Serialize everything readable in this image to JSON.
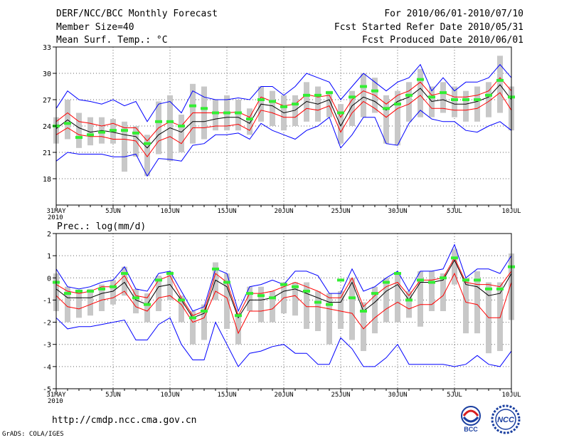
{
  "header": {
    "title": "DERF/NCC/BCC Monthly Forecast",
    "member_size": "Member Size=40",
    "variable": "Mean Surf. Temp.: °C",
    "forecast_for": "For 2010/06/01-2010/07/10",
    "started_refer": "Fcst Started Refer Date 2010/05/31",
    "produced": "Fcst Produced Date 2010/06/01"
  },
  "footer": {
    "url": "http://cmdp.ncc.cma.gov.cn",
    "grads": "GrADS: COLA/IGES",
    "logo_left": "BCC",
    "logo_right": "NCC"
  },
  "colors": {
    "mean": "#000000",
    "spread": "#ff0000",
    "range": "#0000ff",
    "member_bar": "#c8c8c8",
    "marker": "#33ee33"
  },
  "chart_data": [
    {
      "type": "line",
      "title": "Mean Surf. Temp.: °C",
      "x_ticks": [
        "31MAY",
        "5JUN",
        "10JUN",
        "15JUN",
        "20JUN",
        "25JUN",
        "30JUN",
        "5JUL",
        "10JUL"
      ],
      "x_year": "2010",
      "y_ticks": [
        18,
        21,
        24,
        27,
        30,
        33
      ],
      "ylim": [
        15,
        33
      ],
      "x_count": 41,
      "series": [
        {
          "name": "max",
          "values": [
            26.0,
            28.0,
            27.0,
            26.8,
            26.5,
            27.0,
            26.3,
            26.8,
            24.5,
            26.5,
            26.8,
            25.5,
            28.0,
            27.3,
            27.0,
            27.0,
            27.2,
            27.0,
            28.5,
            28.5,
            27.5,
            28.5,
            30.0,
            29.5,
            29.0,
            27.0,
            28.5,
            30.0,
            29.0,
            28.0,
            29.0,
            29.5,
            31.0,
            28.0,
            29.5,
            28.0,
            29.0,
            29.0,
            29.5,
            31.0,
            29.5
          ]
        },
        {
          "name": "upper",
          "values": [
            24.5,
            25.5,
            24.5,
            24.3,
            24.0,
            24.3,
            23.8,
            23.8,
            22.3,
            23.8,
            24.5,
            24.0,
            25.5,
            25.5,
            25.5,
            25.5,
            25.6,
            25.0,
            27.3,
            26.8,
            26.3,
            26.5,
            27.6,
            27.3,
            27.5,
            25.0,
            27.0,
            28.0,
            27.5,
            26.5,
            27.5,
            28.0,
            29.0,
            27.5,
            27.8,
            27.3,
            27.3,
            27.5,
            28.0,
            29.5,
            28.0
          ]
        },
        {
          "name": "mean",
          "values": [
            23.7,
            24.7,
            23.8,
            23.3,
            23.5,
            23.3,
            23.0,
            22.8,
            21.5,
            23.0,
            23.8,
            23.3,
            24.5,
            24.5,
            24.8,
            25.0,
            25.0,
            24.3,
            26.5,
            26.3,
            25.5,
            25.8,
            26.8,
            26.5,
            27.0,
            24.0,
            26.3,
            27.3,
            26.8,
            25.8,
            26.8,
            27.3,
            28.3,
            26.8,
            27.0,
            26.5,
            26.5,
            26.8,
            27.3,
            28.7,
            27.0
          ]
        },
        {
          "name": "lower",
          "values": [
            23.0,
            23.8,
            23.0,
            22.8,
            22.8,
            22.5,
            22.5,
            22.3,
            20.5,
            22.3,
            22.8,
            22.0,
            23.8,
            23.8,
            24.0,
            24.0,
            24.2,
            23.5,
            25.8,
            25.5,
            25.0,
            25.0,
            26.0,
            25.8,
            26.3,
            23.3,
            25.5,
            26.8,
            26.0,
            25.0,
            26.0,
            26.5,
            27.5,
            26.0,
            26.0,
            25.8,
            25.8,
            26.0,
            26.8,
            27.8,
            25.8
          ]
        },
        {
          "name": "min",
          "values": [
            20.0,
            21.0,
            20.8,
            20.8,
            20.8,
            20.5,
            20.5,
            20.8,
            18.3,
            20.3,
            20.2,
            20.0,
            21.8,
            22.0,
            23.0,
            23.0,
            23.2,
            22.5,
            24.3,
            23.5,
            23.0,
            22.5,
            23.5,
            24.0,
            25.0,
            21.5,
            23.0,
            25.0,
            25.0,
            22.0,
            21.8,
            24.3,
            25.8,
            24.8,
            24.5,
            24.5,
            23.5,
            23.3,
            24.0,
            24.5,
            23.5
          ]
        }
      ],
      "member_bars": [
        [
          22.0,
          25.0
        ],
        [
          22.5,
          27.0
        ],
        [
          21.5,
          25.5
        ],
        [
          21.8,
          25.0
        ],
        [
          22.0,
          25.0
        ],
        [
          22.0,
          24.8
        ],
        [
          18.8,
          24.5
        ],
        [
          20.5,
          24.0
        ],
        [
          18.3,
          23.0
        ],
        [
          20.8,
          26.8
        ],
        [
          20.0,
          27.5
        ],
        [
          21.0,
          25.3
        ],
        [
          22.0,
          28.8
        ],
        [
          22.5,
          28.5
        ],
        [
          23.5,
          27.0
        ],
        [
          23.5,
          27.5
        ],
        [
          23.5,
          27.0
        ],
        [
          23.0,
          26.0
        ],
        [
          24.5,
          28.5
        ],
        [
          24.0,
          28.0
        ],
        [
          23.5,
          27.5
        ],
        [
          24.0,
          27.5
        ],
        [
          24.5,
          29.0
        ],
        [
          24.5,
          28.5
        ],
        [
          25.0,
          28.0
        ],
        [
          22.0,
          26.5
        ],
        [
          24.0,
          28.0
        ],
        [
          25.0,
          30.0
        ],
        [
          25.5,
          29.5
        ],
        [
          22.0,
          27.5
        ],
        [
          21.8,
          28.0
        ],
        [
          24.5,
          29.0
        ],
        [
          25.0,
          30.5
        ],
        [
          25.0,
          28.5
        ],
        [
          25.5,
          29.0
        ],
        [
          25.0,
          28.5
        ],
        [
          24.5,
          28.0
        ],
        [
          24.5,
          28.5
        ],
        [
          25.0,
          29.0
        ],
        [
          25.5,
          32.0
        ],
        [
          23.5,
          28.5
        ]
      ],
      "markers": [
        24.0,
        24.3,
        22.7,
        23.0,
        23.3,
        23.5,
        23.5,
        23.2,
        22.0,
        24.5,
        24.5,
        24.0,
        26.3,
        26.0,
        25.5,
        25.5,
        25.5,
        24.8,
        27.0,
        26.8,
        26.2,
        26.5,
        27.5,
        27.5,
        27.8,
        25.5,
        27.3,
        28.5,
        28.0,
        26.0,
        26.5,
        27.5,
        29.3,
        27.3,
        27.8,
        27.0,
        27.0,
        27.0,
        27.5,
        29.2,
        27.3
      ]
    },
    {
      "type": "line",
      "title": "Prec.: log(mm/d)",
      "x_ticks": [
        "31MAY",
        "5JUN",
        "10JUN",
        "15JUN",
        "20JUN",
        "25JUN",
        "30JUN",
        "5JUL",
        "10JUL"
      ],
      "x_year": "2010",
      "y_ticks": [
        -5,
        -4,
        -3,
        -2,
        -1,
        0,
        1,
        2
      ],
      "ylim": [
        -5,
        2
      ],
      "x_count": 41,
      "series": [
        {
          "name": "max",
          "values": [
            0.4,
            -0.4,
            -0.5,
            -0.4,
            -0.2,
            -0.1,
            0.5,
            -0.5,
            -0.6,
            0.2,
            0.3,
            -0.6,
            -1.5,
            -1.3,
            0.4,
            0.2,
            -1.5,
            -0.4,
            -0.3,
            -0.1,
            -0.3,
            0.3,
            0.3,
            0.1,
            -0.7,
            -0.7,
            0.4,
            -0.6,
            -0.4,
            0.0,
            0.3,
            -0.6,
            0.3,
            0.3,
            0.4,
            1.5,
            0.0,
            0.4,
            0.4,
            0.2,
            1.0
          ]
        },
        {
          "name": "upper",
          "values": [
            -0.3,
            -0.6,
            -0.7,
            -0.6,
            -0.4,
            -0.4,
            0.1,
            -0.8,
            -0.9,
            -0.1,
            0.1,
            -0.9,
            -1.7,
            -1.5,
            0.2,
            -0.2,
            -1.7,
            -0.7,
            -0.7,
            -0.6,
            -0.4,
            -0.2,
            -0.4,
            -0.6,
            -0.9,
            -0.9,
            0.0,
            -1.3,
            -0.8,
            -0.4,
            -0.2,
            -0.8,
            -0.1,
            -0.1,
            0.0,
            0.9,
            -0.2,
            -0.3,
            -0.3,
            -0.4,
            0.3
          ]
        },
        {
          "name": "mean",
          "values": [
            -0.5,
            -0.9,
            -0.9,
            -0.9,
            -0.7,
            -0.6,
            -0.2,
            -1.0,
            -1.2,
            -0.4,
            -0.3,
            -1.0,
            -1.8,
            -1.6,
            -0.1,
            -0.4,
            -1.8,
            -1.0,
            -1.0,
            -0.9,
            -0.6,
            -0.5,
            -0.7,
            -0.9,
            -1.1,
            -1.1,
            -0.2,
            -1.5,
            -1.1,
            -0.6,
            -0.3,
            -1.0,
            -0.2,
            -0.2,
            -0.1,
            0.8,
            -0.3,
            -0.4,
            -0.8,
            -0.7,
            0.2
          ]
        },
        {
          "name": "lower",
          "values": [
            -0.8,
            -1.3,
            -1.4,
            -1.2,
            -1.0,
            -0.9,
            -0.6,
            -1.3,
            -1.5,
            -0.9,
            -0.8,
            -1.2,
            -2.0,
            -1.8,
            -0.6,
            -0.9,
            -2.5,
            -1.5,
            -1.5,
            -1.4,
            -0.9,
            -0.8,
            -1.3,
            -1.3,
            -1.4,
            -1.5,
            -1.6,
            -2.3,
            -1.8,
            -1.4,
            -1.1,
            -1.4,
            -1.2,
            -1.2,
            -0.8,
            0.2,
            -1.1,
            -1.2,
            -1.8,
            -1.8,
            -0.2
          ]
        },
        {
          "name": "min",
          "values": [
            -1.8,
            -2.3,
            -2.2,
            -2.2,
            -2.1,
            -2.0,
            -1.9,
            -2.8,
            -2.8,
            -2.1,
            -1.8,
            -3.0,
            -3.7,
            -3.7,
            -2.0,
            -3.0,
            -4.0,
            -3.4,
            -3.3,
            -3.1,
            -3.0,
            -3.4,
            -3.4,
            -3.9,
            -3.9,
            -2.7,
            -3.2,
            -4.0,
            -4.0,
            -3.6,
            -3.0,
            -3.9,
            -3.9,
            -3.9,
            -3.9,
            -4.0,
            -3.9,
            -3.5,
            -3.9,
            -4.0,
            -3.3
          ]
        },
        {
          "name": "markers",
          "values": [
            -0.2,
            -0.7,
            -0.6,
            -0.6,
            -0.5,
            -0.4,
            0.2,
            -0.9,
            -1.2,
            -0.1,
            0.2,
            -1.0,
            -1.8,
            -1.5,
            0.4,
            -0.2,
            -1.7,
            -0.7,
            -0.8,
            -0.9,
            -0.3,
            -0.4,
            -0.6,
            -1.1,
            -1.2,
            -0.1,
            -0.9,
            -1.5,
            -0.7,
            -0.2,
            0.2,
            -1.0,
            -0.1,
            -0.2,
            0.0,
            0.9,
            -0.1,
            -0.1,
            -0.5,
            -0.5,
            0.5
          ]
        }
      ],
      "member_bars": [
        [
          -1.5,
          0.2
        ],
        [
          -2.0,
          -0.4
        ],
        [
          -1.8,
          -0.6
        ],
        [
          -1.7,
          -0.5
        ],
        [
          -1.5,
          -0.3
        ],
        [
          -1.2,
          -0.1
        ],
        [
          -0.8,
          0.5
        ],
        [
          -1.6,
          -0.5
        ],
        [
          -2.0,
          -0.7
        ],
        [
          -1.5,
          0.1
        ],
        [
          -1.0,
          0.3
        ],
        [
          -2.0,
          -0.8
        ],
        [
          -3.0,
          -1.5
        ],
        [
          -2.8,
          -1.2
        ],
        [
          -1.0,
          0.7
        ],
        [
          -2.3,
          0.2
        ],
        [
          -3.0,
          -1.6
        ],
        [
          -1.5,
          -0.4
        ],
        [
          -2.0,
          -0.4
        ],
        [
          -2.0,
          -0.6
        ],
        [
          -1.6,
          -0.2
        ],
        [
          -1.7,
          -0.2
        ],
        [
          -2.3,
          -0.2
        ],
        [
          -2.4,
          -0.6
        ],
        [
          -3.0,
          -0.7
        ],
        [
          -2.3,
          -0.6
        ],
        [
          -2.8,
          0.0
        ],
        [
          -3.3,
          -1.1
        ],
        [
          -2.5,
          -0.4
        ],
        [
          -2.0,
          0.0
        ],
        [
          -2.0,
          0.2
        ],
        [
          -1.8,
          -0.6
        ],
        [
          -2.2,
          0.3
        ],
        [
          -1.5,
          0.3
        ],
        [
          -1.5,
          0.2
        ],
        [
          -0.3,
          1.3
        ],
        [
          -2.5,
          0.0
        ],
        [
          -2.5,
          0.3
        ],
        [
          -3.4,
          -0.2
        ],
        [
          -3.3,
          -0.2
        ],
        [
          -1.9,
          1.1
        ]
      ]
    }
  ]
}
